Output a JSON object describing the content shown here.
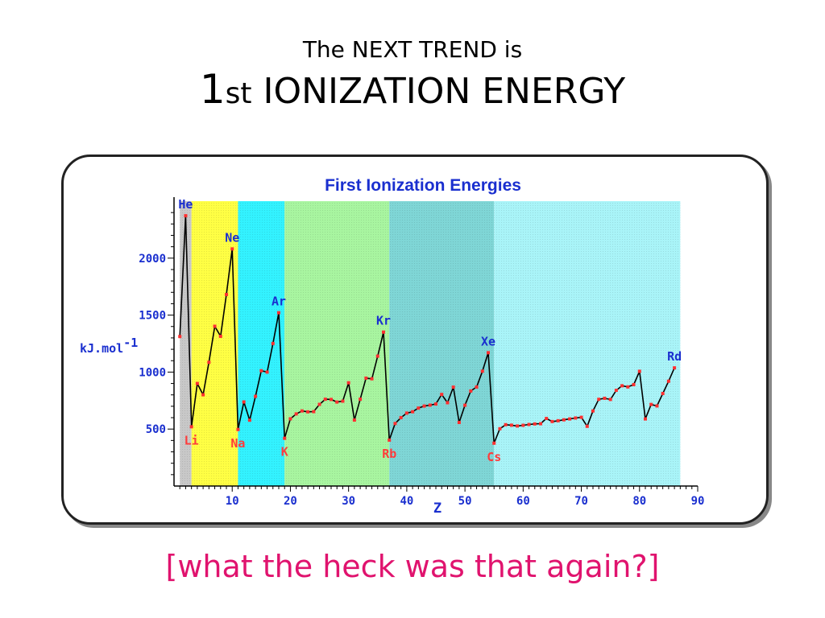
{
  "slide": {
    "title_line1": "The NEXT TREND is",
    "title_number": "1",
    "title_sup": "st",
    "title_rest": " IONIZATION ENERGY",
    "caption": "[what the heck was that again?]"
  },
  "chart_data": {
    "type": "line",
    "title": "First Ionization Energies",
    "xlabel": "Z",
    "ylabel": "kJ.mol",
    "ylabel_sup": "-1",
    "xlim": [
      0,
      90
    ],
    "ylim": [
      0,
      2500
    ],
    "xticks": [
      10,
      20,
      30,
      40,
      50,
      60,
      70,
      80,
      90
    ],
    "yticks": [
      500,
      1000,
      1500,
      2000
    ],
    "colors": {
      "title": "#1a2fcf",
      "tick_labels": "#1a2fcf",
      "line": "#000000",
      "markers": "#ff3030",
      "peak_labels": "#1a2fcf",
      "trough_labels": "#ff3b3b"
    },
    "bands": [
      {
        "from": 1,
        "to": 3,
        "color": "#c8c8c8"
      },
      {
        "from": 3,
        "to": 11,
        "color": "#ffff44"
      },
      {
        "from": 11,
        "to": 19,
        "color": "#33f2ff"
      },
      {
        "from": 19,
        "to": 37,
        "color": "#a8f5a0"
      },
      {
        "from": 37,
        "to": 55,
        "color": "#7fd6d6"
      },
      {
        "from": 55,
        "to": 87,
        "color": "#a9f4f8"
      }
    ],
    "series": [
      {
        "x": [
          1,
          2,
          3,
          4,
          5,
          6,
          7,
          8,
          9,
          10,
          11,
          12,
          13,
          14,
          15,
          16,
          17,
          18,
          19,
          20,
          21,
          22,
          23,
          24,
          25,
          26,
          27,
          28,
          29,
          30,
          31,
          32,
          33,
          34,
          35,
          36,
          37,
          38,
          39,
          40,
          41,
          42,
          43,
          44,
          45,
          46,
          47,
          48,
          49,
          50,
          51,
          52,
          53,
          54,
          55,
          56,
          57,
          58,
          59,
          60,
          61,
          62,
          63,
          64,
          65,
          66,
          67,
          68,
          69,
          70,
          71,
          72,
          73,
          74,
          75,
          76,
          77,
          78,
          79,
          80,
          81,
          82,
          83,
          84,
          85,
          86
        ],
        "y": [
          1312,
          2372,
          520,
          900,
          801,
          1086,
          1402,
          1314,
          1681,
          2081,
          496,
          738,
          578,
          787,
          1012,
          1000,
          1251,
          1521,
          419,
          590,
          633,
          659,
          651,
          653,
          717,
          762,
          760,
          737,
          745,
          906,
          579,
          762,
          947,
          941,
          1140,
          1351,
          403,
          549,
          600,
          640,
          652,
          684,
          702,
          710,
          720,
          804,
          731,
          868,
          558,
          709,
          834,
          869,
          1008,
          1170,
          376,
          503,
          538,
          534,
          527,
          533,
          540,
          545,
          547,
          593,
          566,
          573,
          581,
          589,
          597,
          603,
          524,
          659,
          761,
          770,
          760,
          840,
          880,
          870,
          890,
          1007,
          589,
          716,
          703,
          812,
          920,
          1037
        ]
      }
    ],
    "labels": [
      {
        "text": "He",
        "x": 2,
        "kind": "peak"
      },
      {
        "text": "Ne",
        "x": 10,
        "kind": "peak"
      },
      {
        "text": "Ar",
        "x": 18,
        "kind": "peak"
      },
      {
        "text": "Kr",
        "x": 36,
        "kind": "peak"
      },
      {
        "text": "Xe",
        "x": 54,
        "kind": "peak"
      },
      {
        "text": "Rd",
        "x": 86,
        "kind": "peak"
      },
      {
        "text": "Li",
        "x": 3,
        "kind": "trough"
      },
      {
        "text": "Na",
        "x": 11,
        "kind": "trough"
      },
      {
        "text": "K",
        "x": 19,
        "kind": "trough"
      },
      {
        "text": "Rb",
        "x": 37,
        "kind": "trough"
      },
      {
        "text": "Cs",
        "x": 55,
        "kind": "trough"
      }
    ]
  }
}
